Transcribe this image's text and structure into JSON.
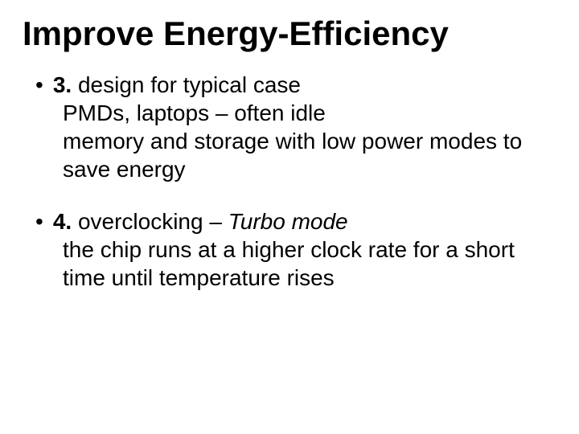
{
  "background_color": "#ffffff",
  "text_color": "#000000",
  "font_family": "Verdana",
  "title": {
    "text": "Improve Energy-Efficiency",
    "fontsize": 42,
    "weight": "bold"
  },
  "body_fontsize": 28,
  "bullet_glyph": "•",
  "items": [
    {
      "lead_bold": "3.",
      "lead_rest": " design for typical case",
      "sub": [
        "PMDs, laptops – often idle",
        "memory and storage with low power modes to save energy"
      ]
    },
    {
      "lead_bold": "4.",
      "lead_rest_plain": " overclocking – ",
      "lead_rest_italic": "Turbo mode",
      "sub": [
        "the chip runs at a higher clock rate for a short time until temperature rises"
      ]
    }
  ]
}
